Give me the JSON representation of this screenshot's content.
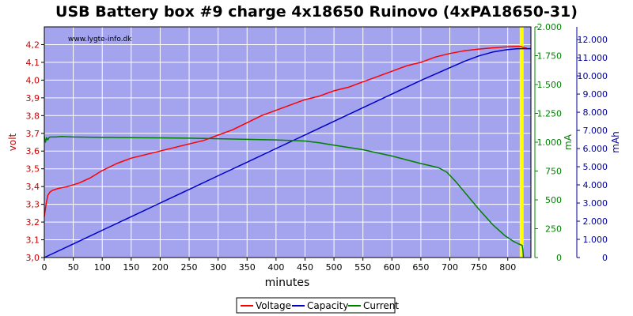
{
  "chart_data": {
    "type": "line",
    "title": "USB Battery box #9 charge 4x18650 Ruinovo (4xPA18650-31)",
    "watermark": "www.lygte-info.dk",
    "xlabel": "minutes",
    "xlim": [
      0,
      840
    ],
    "x_ticks": [
      0,
      50,
      100,
      150,
      200,
      250,
      300,
      350,
      400,
      450,
      500,
      550,
      600,
      650,
      700,
      750,
      800
    ],
    "y_axes": [
      {
        "id": "volt",
        "label": "volt",
        "color": "#cc0000",
        "lim": [
          3.0,
          4.3
        ],
        "ticks": [
          "3,0",
          "3,1",
          "3,2",
          "3,3",
          "3,4",
          "3,5",
          "3,6",
          "3,7",
          "3,8",
          "3,9",
          "4,0",
          "4,1",
          "4,2"
        ],
        "tick_values": [
          3.0,
          3.1,
          3.2,
          3.3,
          3.4,
          3.5,
          3.6,
          3.7,
          3.8,
          3.9,
          4.0,
          4.1,
          4.2
        ]
      },
      {
        "id": "ma",
        "label": "mA",
        "color": "#008000",
        "lim": [
          0,
          2000
        ],
        "ticks": [
          "0",
          "250",
          "500",
          "750",
          "1.000",
          "1.250",
          "1.500",
          "1.750",
          "2.000"
        ],
        "tick_values": [
          0,
          250,
          500,
          750,
          1000,
          1250,
          1500,
          1750,
          2000
        ]
      },
      {
        "id": "mah",
        "label": "mAh",
        "color": "#000099",
        "lim": [
          0,
          12700
        ],
        "ticks": [
          "0",
          "1.000",
          "2.000",
          "3.000",
          "4.000",
          "5.000",
          "6.000",
          "7.000",
          "8.000",
          "9.000",
          "10.000",
          "11.000",
          "12.000"
        ],
        "tick_values": [
          0,
          1000,
          2000,
          3000,
          4000,
          5000,
          6000,
          7000,
          8000,
          9000,
          10000,
          11000,
          12000
        ]
      }
    ],
    "series": [
      {
        "name": "Voltage",
        "axis": "volt",
        "color": "#ff0000",
        "points": [
          [
            0,
            3.23
          ],
          [
            3,
            3.3
          ],
          [
            6,
            3.35
          ],
          [
            10,
            3.37
          ],
          [
            15,
            3.38
          ],
          [
            25,
            3.39
          ],
          [
            40,
            3.4
          ],
          [
            60,
            3.42
          ],
          [
            80,
            3.45
          ],
          [
            100,
            3.49
          ],
          [
            125,
            3.53
          ],
          [
            150,
            3.56
          ],
          [
            175,
            3.58
          ],
          [
            200,
            3.6
          ],
          [
            225,
            3.62
          ],
          [
            250,
            3.64
          ],
          [
            275,
            3.66
          ],
          [
            300,
            3.69
          ],
          [
            325,
            3.72
          ],
          [
            350,
            3.76
          ],
          [
            375,
            3.8
          ],
          [
            400,
            3.83
          ],
          [
            425,
            3.86
          ],
          [
            450,
            3.89
          ],
          [
            475,
            3.91
          ],
          [
            500,
            3.94
          ],
          [
            525,
            3.96
          ],
          [
            550,
            3.99
          ],
          [
            575,
            4.02
          ],
          [
            600,
            4.05
          ],
          [
            625,
            4.08
          ],
          [
            650,
            4.1
          ],
          [
            675,
            4.13
          ],
          [
            700,
            4.15
          ],
          [
            725,
            4.165
          ],
          [
            750,
            4.175
          ],
          [
            775,
            4.182
          ],
          [
            800,
            4.188
          ],
          [
            815,
            4.19
          ],
          [
            822,
            4.19
          ],
          [
            826,
            4.185
          ],
          [
            833,
            4.18
          ]
        ]
      },
      {
        "name": "Capacity",
        "axis": "mah",
        "color": "#0000cc",
        "points": [
          [
            0,
            0
          ],
          [
            50,
            750
          ],
          [
            100,
            1500
          ],
          [
            150,
            2250
          ],
          [
            200,
            3000
          ],
          [
            250,
            3750
          ],
          [
            300,
            4500
          ],
          [
            350,
            5250
          ],
          [
            400,
            6000
          ],
          [
            450,
            6750
          ],
          [
            500,
            7500
          ],
          [
            550,
            8250
          ],
          [
            600,
            9000
          ],
          [
            650,
            9750
          ],
          [
            700,
            10450
          ],
          [
            725,
            10800
          ],
          [
            750,
            11100
          ],
          [
            775,
            11320
          ],
          [
            800,
            11450
          ],
          [
            815,
            11490
          ],
          [
            822,
            11500
          ],
          [
            840,
            11500
          ]
        ]
      },
      {
        "name": "Current",
        "axis": "ma",
        "color": "#008000",
        "points": [
          [
            0,
            1050
          ],
          [
            2,
            1000
          ],
          [
            4,
            1040
          ],
          [
            6,
            1020
          ],
          [
            8,
            1040
          ],
          [
            10,
            1045
          ],
          [
            20,
            1045
          ],
          [
            30,
            1050
          ],
          [
            50,
            1045
          ],
          [
            100,
            1042
          ],
          [
            150,
            1040
          ],
          [
            200,
            1038
          ],
          [
            250,
            1035
          ],
          [
            300,
            1030
          ],
          [
            350,
            1025
          ],
          [
            400,
            1020
          ],
          [
            450,
            1010
          ],
          [
            475,
            995
          ],
          [
            500,
            975
          ],
          [
            550,
            935
          ],
          [
            600,
            880
          ],
          [
            650,
            815
          ],
          [
            680,
            780
          ],
          [
            695,
            740
          ],
          [
            710,
            660
          ],
          [
            725,
            570
          ],
          [
            750,
            420
          ],
          [
            775,
            280
          ],
          [
            795,
            190
          ],
          [
            810,
            140
          ],
          [
            818,
            120
          ],
          [
            825,
            105
          ],
          [
            826,
            70
          ],
          [
            827,
            0
          ]
        ]
      }
    ],
    "markers": [
      {
        "x": 824,
        "color": "#ffff00"
      }
    ],
    "legend": {
      "placement": "bottom-center",
      "items": [
        "Voltage",
        "Capacity",
        "Current"
      ]
    },
    "grid": true,
    "plot_background": "#a3a3ee"
  }
}
